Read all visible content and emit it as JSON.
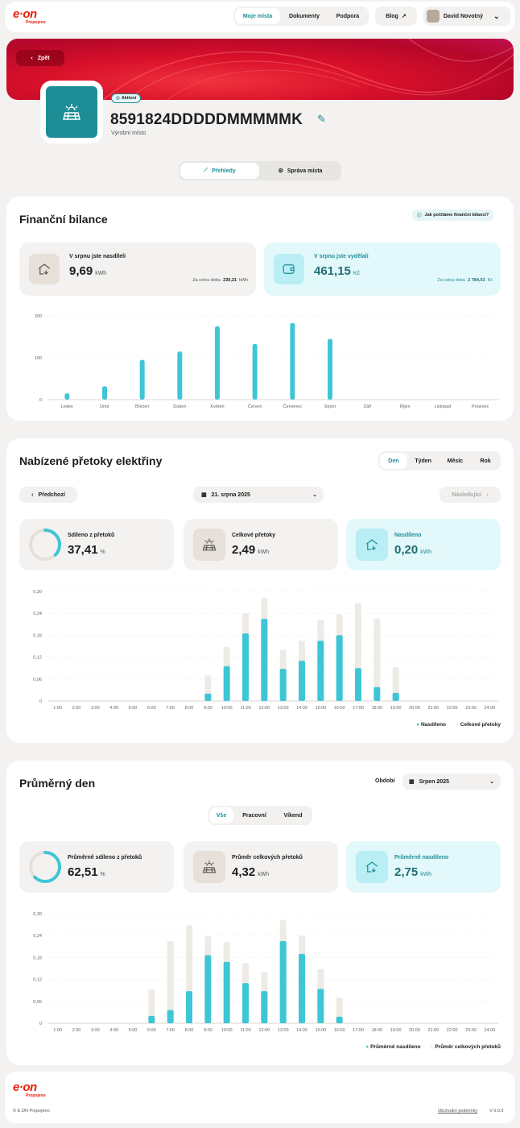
{
  "header": {
    "logo": "e·on",
    "logo_sub": "Propojeno",
    "nav": [
      "Moje místa",
      "Dokumenty",
      "Podpora"
    ],
    "blog": "Blog",
    "user": "David Novotný"
  },
  "hero": {
    "back": "Zpět",
    "status": "Aktivní",
    "code": "8591824DDDDDMMMMMK",
    "subtitle": "Výrobní místo"
  },
  "view_tabs": [
    "Přehledy",
    "Správa místa"
  ],
  "balance": {
    "title": "Finanční bilance",
    "help": "Jak počítáme finanční bilanci?",
    "shared_label": "V srpnu jste nasdíleli",
    "shared_value": "9,69",
    "shared_unit": "kWh",
    "shared_total_label": "Za celou dobu",
    "shared_total": "230,21",
    "shared_total_unit": "kWh",
    "earned_label": "V srpnu jste vydělali",
    "earned_value": "461,15",
    "earned_unit": "Kč",
    "earned_total_label": "Za celou dobu",
    "earned_total": "2 784,03",
    "earned_total_unit": "Kč"
  },
  "flows": {
    "title": "Nabízené přetoky elektřiny",
    "periods": [
      "Den",
      "Týden",
      "Měsíc",
      "Rok"
    ],
    "prev": "Předchozí",
    "date": "21. srpna 2025",
    "next": "Následující",
    "s1_label": "Sdíleno z přetoků",
    "s1_value": "37,41",
    "s1_unit": "%",
    "s2_label": "Celkové přetoky",
    "s2_value": "2,49",
    "s2_unit": "kWh",
    "s3_label": "Nasdíleno",
    "s3_value": "0,20",
    "s3_unit": "kWh",
    "legend_shared": "Nasdíleno",
    "legend_total": "Celkové přetoky"
  },
  "avg": {
    "title": "Průměrný den",
    "period_label": "Období",
    "period_value": "Srpen 2025",
    "filters": [
      "Vše",
      "Pracovní",
      "Víkend"
    ],
    "s1_label": "Průměrně sdíleno z přetoků",
    "s1_value": "62,51",
    "s1_unit": "%",
    "s2_label": "Průměr celkových přetoků",
    "s2_value": "4,32",
    "s2_unit": "kWh",
    "s3_label": "Průměrně nasdíleno",
    "s3_value": "2,75",
    "s3_unit": "kWh",
    "legend_shared": "Průměrně nasdíleno",
    "legend_total": "Průměr celkových přetoků"
  },
  "footer": {
    "logo": "e·on",
    "logo_sub": "Propojeno",
    "copyright": "© E.ON Propojeno",
    "terms": "Obchodní podmínky",
    "version": "V 0.0.0"
  },
  "colors": {
    "brand": "#ea1c0a",
    "teal": "#1e8e96",
    "bar": "#3ec6d6",
    "bar_bg": "#eeeae6"
  },
  "chart_data": [
    {
      "type": "bar",
      "title": "Finanční bilance",
      "categories": [
        "Leden",
        "Únor",
        "Březen",
        "Duben",
        "Květen",
        "Červen",
        "Červenec",
        "Srpen",
        "Září",
        "Říjen",
        "Listopad",
        "Prosinec"
      ],
      "values": [
        15,
        32,
        95,
        115,
        175,
        133,
        183,
        145,
        0,
        0,
        0,
        0
      ],
      "ylim": [
        0,
        200
      ],
      "yticks": [
        0,
        100,
        200
      ]
    },
    {
      "type": "bar",
      "title": "Nabízené přetoky elektřiny",
      "categories": [
        "1:00",
        "2:00",
        "3:00",
        "4:00",
        "5:00",
        "6:00",
        "7:00",
        "8:00",
        "9:00",
        "10:00",
        "11:00",
        "12:00",
        "13:00",
        "14:00",
        "15:00",
        "16:00",
        "17:00",
        "18:00",
        "19:00",
        "20:00",
        "21:00",
        "22:00",
        "23:00",
        "24:00"
      ],
      "series": [
        {
          "name": "Nasdíleno",
          "values": [
            0,
            0,
            0,
            0,
            0,
            0,
            0,
            0,
            0.02,
            0.095,
            0.185,
            0.225,
            0.088,
            0.11,
            0.165,
            0.18,
            0.09,
            0.038,
            0.022,
            0,
            0,
            0,
            0,
            0
          ]
        },
        {
          "name": "Celkové přetoky",
          "values": [
            0,
            0,
            0,
            0,
            0,
            0,
            0,
            0,
            0.07,
            0.148,
            0.24,
            0.282,
            0.14,
            0.165,
            0.222,
            0.238,
            0.268,
            0.226,
            0.092,
            0,
            0,
            0,
            0,
            0
          ]
        }
      ],
      "ylim": [
        0,
        0.3
      ],
      "yticks": [
        "0",
        "0,06",
        "0,12",
        "0,18",
        "0,24",
        "0,30"
      ]
    },
    {
      "type": "bar",
      "title": "Průměrný den",
      "categories": [
        "1:00",
        "2:00",
        "3:00",
        "4:00",
        "5:00",
        "6:00",
        "7:00",
        "8:00",
        "9:00",
        "10:00",
        "11:00",
        "12:00",
        "13:00",
        "14:00",
        "15:00",
        "16:00",
        "17:00",
        "18:00",
        "19:00",
        "20:00",
        "21:00",
        "22:00",
        "23:00",
        "24:00"
      ],
      "series": [
        {
          "name": "Průměrně nasdíleno",
          "values": [
            0,
            0,
            0,
            0,
            0,
            0.02,
            0.036,
            0.088,
            0.186,
            0.168,
            0.11,
            0.088,
            0.225,
            0.19,
            0.094,
            0.018,
            0,
            0,
            0,
            0,
            0,
            0,
            0,
            0
          ]
        },
        {
          "name": "Průměr celkových přetoků",
          "values": [
            0,
            0,
            0,
            0,
            0,
            0.092,
            0.225,
            0.268,
            0.238,
            0.222,
            0.165,
            0.14,
            0.282,
            0.24,
            0.148,
            0.07,
            0,
            0,
            0,
            0,
            0,
            0,
            0,
            0
          ]
        }
      ],
      "ylim": [
        0,
        0.3
      ],
      "yticks": [
        "0",
        "0,06",
        "0,12",
        "0,18",
        "0,24",
        "0,30"
      ]
    }
  ]
}
